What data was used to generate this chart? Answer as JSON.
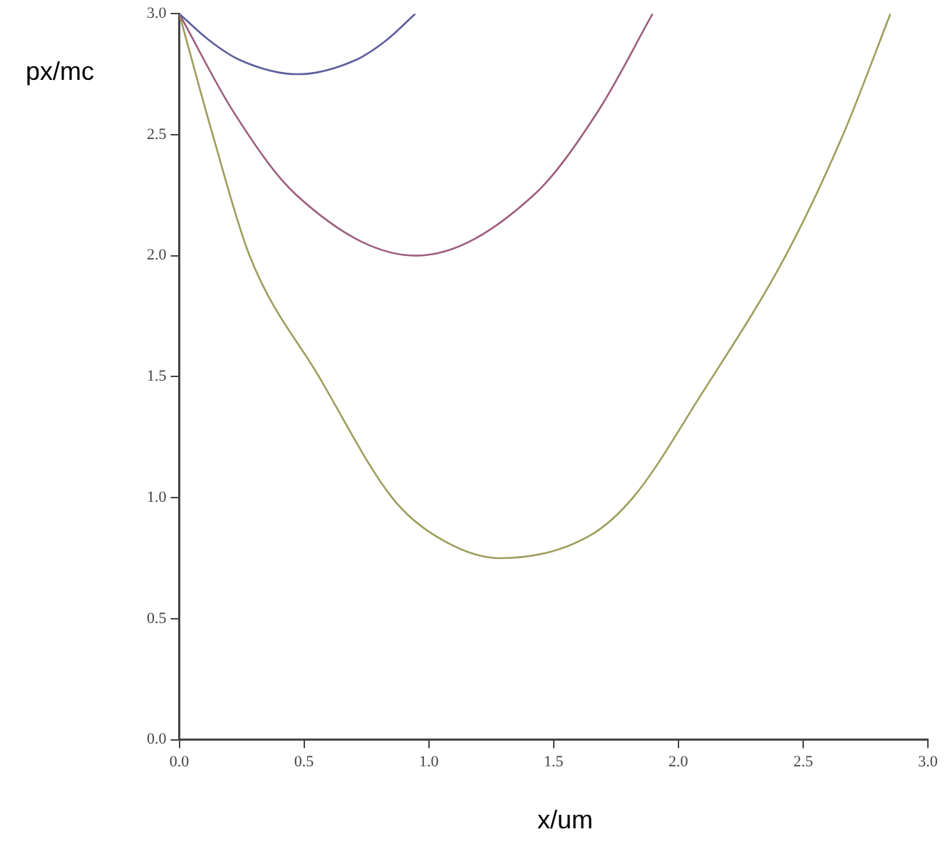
{
  "chart_data": {
    "type": "line",
    "xlabel": "x/um",
    "ylabel": "px/mc",
    "xlim": [
      0,
      3.0
    ],
    "ylim": [
      0,
      3.0
    ],
    "xticks": [
      {
        "value": 0,
        "label": "0.0"
      },
      0.5,
      {
        "value": 1,
        "label": "1.0"
      },
      1.5,
      {
        "value": 2,
        "label": "2.0"
      },
      2.5,
      {
        "value": 3,
        "label": "3.0"
      }
    ],
    "yticks": [
      {
        "value": 0,
        "label": "0.0"
      },
      0.5,
      {
        "value": 1,
        "label": "1.0"
      },
      1.5,
      {
        "value": 2,
        "label": "2.0"
      },
      2.5,
      {
        "value": 3,
        "label": "3.0"
      }
    ],
    "grid": false,
    "legend": false,
    "marker": "none",
    "line_style": "solid",
    "series": [
      {
        "color": "#5e5e9e",
        "x": [
          0,
          0.12,
          0.24,
          0.475,
          0.71,
          0.83,
          0.946
        ],
        "values": [
          3,
          2.89,
          2.81,
          2.75,
          2.81,
          2.89,
          3
        ]
      },
      {
        "color": "#9e5e7e",
        "x": [
          0,
          0.22,
          0.47,
          0.95,
          1.42,
          1.68,
          1.897
        ],
        "values": [
          3,
          2.59,
          2.25,
          2.0,
          2.25,
          2.6,
          3
        ]
      },
      {
        "color": "#9e9e5e",
        "x": [
          0,
          0.134,
          0.282,
          0.56,
          0.853,
          1.03,
          1.286,
          1.64,
          1.818,
          2.094,
          2.43,
          2.66,
          2.85
        ],
        "values": [
          3,
          2.5,
          2.0,
          1.5,
          1.0,
          0.84,
          0.75,
          0.84,
          1.0,
          1.43,
          2.0,
          2.5,
          3.0
        ]
      }
    ]
  }
}
